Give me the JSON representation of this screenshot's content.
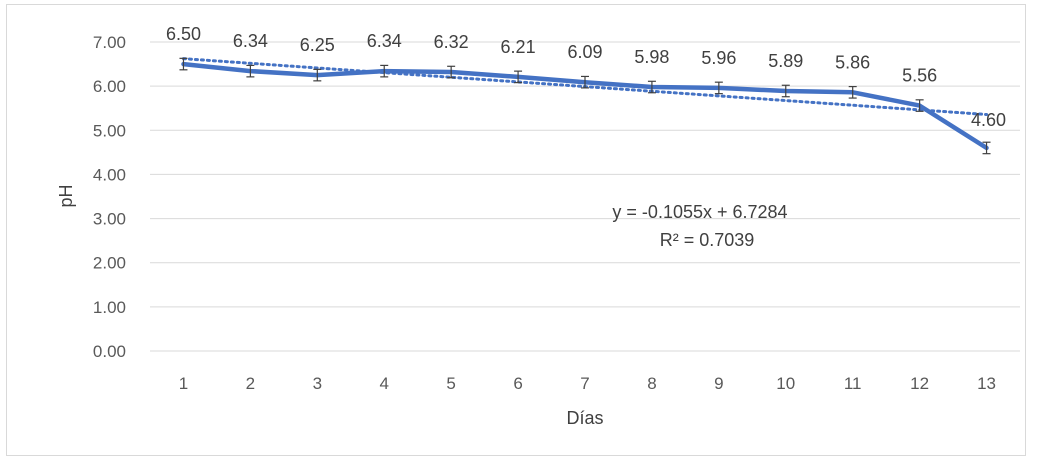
{
  "chart_data": {
    "type": "line",
    "title": "",
    "xlabel": "Días",
    "ylabel": "pH",
    "categories": [
      "1",
      "2",
      "3",
      "4",
      "5",
      "6",
      "7",
      "8",
      "9",
      "10",
      "11",
      "12",
      "13"
    ],
    "series": [
      {
        "values": [
          6.5,
          6.34,
          6.25,
          6.34,
          6.32,
          6.21,
          6.09,
          5.98,
          5.96,
          5.89,
          5.86,
          5.56,
          4.6
        ],
        "labels": [
          "6.50",
          "6.34",
          "6.25",
          "6.34",
          "6.32",
          "6.21",
          "6.09",
          "5.98",
          "5.96",
          "5.89",
          "5.86",
          "5.56",
          "4.60"
        ],
        "error": 0.13,
        "color": "#4472c4"
      }
    ],
    "trendline": {
      "type": "linear",
      "slope": -0.1055,
      "intercept": 6.7284,
      "equation": "y = -0.1055x + 6.7284",
      "r_squared": "R² = 0.7039",
      "style": "dotted",
      "color": "#4472c4"
    },
    "ylim": [
      0,
      7
    ],
    "yticks": [
      "0.00",
      "1.00",
      "2.00",
      "3.00",
      "4.00",
      "5.00",
      "6.00",
      "7.00"
    ],
    "grid": true,
    "legend": "none"
  }
}
